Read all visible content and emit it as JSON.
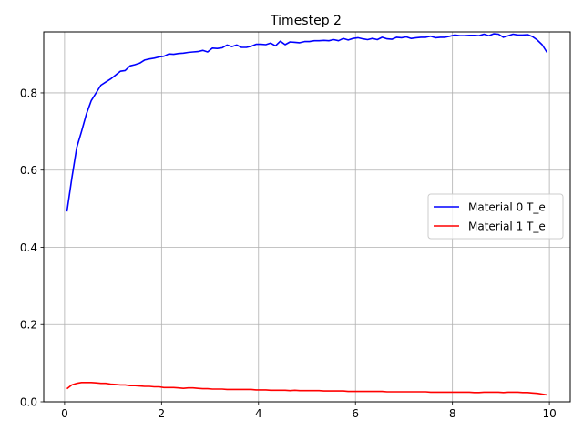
{
  "chart_data": {
    "type": "line",
    "title": "Timestep 2",
    "xlabel": "",
    "ylabel": "",
    "xlim": [
      -0.43,
      10.43
    ],
    "ylim": [
      0,
      0.958
    ],
    "xticks": [
      0,
      2,
      4,
      6,
      8,
      10
    ],
    "xtick_labels": [
      "0",
      "2",
      "4",
      "6",
      "8",
      "10"
    ],
    "yticks": [
      0.0,
      0.2,
      0.4,
      0.6,
      0.8
    ],
    "ytick_labels": [
      "0.0",
      "0.2",
      "0.4",
      "0.6",
      "0.8"
    ],
    "grid": true,
    "legend_position": "center-right",
    "series": [
      {
        "name": "Material 0 T_e",
        "color": "#0000ff",
        "x": [
          0.05,
          0.15,
          0.25,
          0.35,
          0.45,
          0.55,
          0.65,
          0.75,
          0.85,
          0.95,
          1.05,
          1.15,
          1.25,
          1.35,
          1.45,
          1.55,
          1.65,
          1.75,
          1.85,
          1.95,
          2.05,
          2.15,
          2.25,
          2.35,
          2.45,
          2.55,
          2.65,
          2.75,
          2.85,
          2.95,
          3.05,
          3.15,
          3.25,
          3.35,
          3.45,
          3.55,
          3.65,
          3.75,
          3.85,
          3.95,
          4.05,
          4.15,
          4.25,
          4.35,
          4.45,
          4.55,
          4.65,
          4.75,
          4.85,
          4.95,
          5.05,
          5.15,
          5.25,
          5.35,
          5.45,
          5.55,
          5.65,
          5.75,
          5.85,
          5.95,
          6.05,
          6.15,
          6.25,
          6.35,
          6.45,
          6.55,
          6.65,
          6.75,
          6.85,
          6.95,
          7.05,
          7.15,
          7.25,
          7.35,
          7.45,
          7.55,
          7.65,
          7.75,
          7.85,
          7.95,
          8.05,
          8.15,
          8.25,
          8.35,
          8.45,
          8.55,
          8.65,
          8.75,
          8.85,
          8.95,
          9.05,
          9.15,
          9.25,
          9.35,
          9.45,
          9.55,
          9.65,
          9.75,
          9.85,
          9.95
        ],
        "y": [
          0.493,
          0.58,
          0.658,
          0.7,
          0.745,
          0.78,
          0.8,
          0.82,
          0.828,
          0.836,
          0.846,
          0.856,
          0.858,
          0.87,
          0.873,
          0.877,
          0.885,
          0.888,
          0.89,
          0.893,
          0.895,
          0.901,
          0.9,
          0.902,
          0.903,
          0.905,
          0.906,
          0.907,
          0.91,
          0.906,
          0.916,
          0.915,
          0.917,
          0.924,
          0.92,
          0.924,
          0.918,
          0.918,
          0.921,
          0.926,
          0.926,
          0.925,
          0.929,
          0.922,
          0.934,
          0.925,
          0.932,
          0.931,
          0.93,
          0.933,
          0.933,
          0.935,
          0.935,
          0.936,
          0.935,
          0.938,
          0.935,
          0.941,
          0.937,
          0.941,
          0.943,
          0.94,
          0.938,
          0.941,
          0.938,
          0.944,
          0.94,
          0.939,
          0.944,
          0.943,
          0.945,
          0.941,
          0.943,
          0.944,
          0.944,
          0.947,
          0.943,
          0.944,
          0.944,
          0.947,
          0.95,
          0.948,
          0.948,
          0.949,
          0.949,
          0.948,
          0.952,
          0.948,
          0.953,
          0.952,
          0.944,
          0.948,
          0.952,
          0.95,
          0.95,
          0.951,
          0.946,
          0.937,
          0.925,
          0.905
        ]
      },
      {
        "name": "Material 1 T_e",
        "color": "#ff0000",
        "x": [
          0.05,
          0.15,
          0.25,
          0.35,
          0.45,
          0.55,
          0.65,
          0.75,
          0.85,
          0.95,
          1.05,
          1.15,
          1.25,
          1.35,
          1.45,
          1.55,
          1.65,
          1.75,
          1.85,
          1.95,
          2.05,
          2.15,
          2.25,
          2.35,
          2.45,
          2.55,
          2.65,
          2.75,
          2.85,
          2.95,
          3.05,
          3.15,
          3.25,
          3.35,
          3.45,
          3.55,
          3.65,
          3.75,
          3.85,
          3.95,
          4.05,
          4.15,
          4.25,
          4.35,
          4.45,
          4.55,
          4.65,
          4.75,
          4.85,
          4.95,
          5.05,
          5.15,
          5.25,
          5.35,
          5.45,
          5.55,
          5.65,
          5.75,
          5.85,
          5.95,
          6.05,
          6.15,
          6.25,
          6.35,
          6.45,
          6.55,
          6.65,
          6.75,
          6.85,
          6.95,
          7.05,
          7.15,
          7.25,
          7.35,
          7.45,
          7.55,
          7.65,
          7.75,
          7.85,
          7.95,
          8.05,
          8.15,
          8.25,
          8.35,
          8.45,
          8.55,
          8.65,
          8.75,
          8.85,
          8.95,
          9.05,
          9.15,
          9.25,
          9.35,
          9.45,
          9.55,
          9.65,
          9.75,
          9.85,
          9.95
        ],
        "y": [
          0.034,
          0.044,
          0.048,
          0.05,
          0.05,
          0.05,
          0.049,
          0.048,
          0.048,
          0.046,
          0.045,
          0.044,
          0.044,
          0.042,
          0.042,
          0.041,
          0.04,
          0.04,
          0.039,
          0.039,
          0.037,
          0.037,
          0.037,
          0.036,
          0.035,
          0.036,
          0.036,
          0.035,
          0.034,
          0.034,
          0.033,
          0.033,
          0.033,
          0.032,
          0.032,
          0.032,
          0.032,
          0.032,
          0.032,
          0.031,
          0.031,
          0.031,
          0.03,
          0.03,
          0.03,
          0.03,
          0.029,
          0.03,
          0.029,
          0.029,
          0.029,
          0.029,
          0.029,
          0.028,
          0.028,
          0.028,
          0.028,
          0.028,
          0.027,
          0.027,
          0.027,
          0.027,
          0.027,
          0.027,
          0.027,
          0.027,
          0.026,
          0.026,
          0.026,
          0.026,
          0.026,
          0.026,
          0.026,
          0.026,
          0.026,
          0.025,
          0.025,
          0.025,
          0.025,
          0.025,
          0.025,
          0.025,
          0.025,
          0.025,
          0.024,
          0.024,
          0.025,
          0.025,
          0.025,
          0.025,
          0.024,
          0.025,
          0.025,
          0.025,
          0.024,
          0.024,
          0.023,
          0.022,
          0.02,
          0.018
        ]
      }
    ]
  }
}
